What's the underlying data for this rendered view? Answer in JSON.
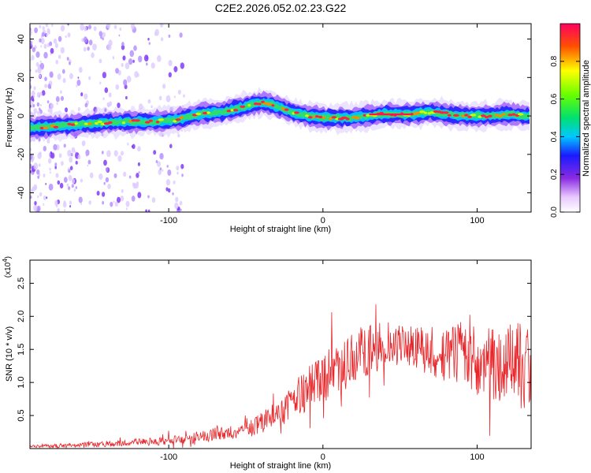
{
  "title": "C2E2.2026.052.02.23.G22",
  "chart_data": [
    {
      "type": "heatmap",
      "title": "C2E2.2026.052.02.23.G22",
      "xlabel": "Height of straight line (km)",
      "ylabel": "Frequency (Hz)",
      "xlim": [
        -190,
        135
      ],
      "ylim": [
        -50,
        48
      ],
      "xticks": [
        -100,
        0,
        100
      ],
      "xtick_labels": [
        "-100",
        "0",
        "100"
      ],
      "yticks": [
        -40,
        -20,
        0,
        20,
        40
      ],
      "ytick_labels": [
        "-40",
        "-20",
        "0",
        "20",
        "40"
      ],
      "ridge": {
        "x": [
          -185,
          -170,
          -150,
          -130,
          -110,
          -95,
          -80,
          -65,
          -55,
          -45,
          -38,
          -30,
          -20,
          -10,
          0,
          10,
          20,
          30,
          40,
          50,
          60,
          70,
          80,
          90,
          100,
          110,
          120,
          130
        ],
        "frequency": [
          -6,
          -5,
          -4,
          -3,
          -3,
          -2,
          1,
          2,
          4,
          6,
          7,
          5,
          2,
          0,
          -1,
          -1,
          -1,
          0,
          1,
          1,
          1,
          2,
          1,
          0,
          0,
          0,
          1,
          0
        ]
      },
      "colorbar": {
        "label": "Normalized spectral amplitude",
        "range": [
          0,
          1
        ],
        "ticks": [
          0,
          0.2,
          0.4,
          0.6,
          0.8
        ],
        "tick_labels": [
          "0.0",
          "0.2",
          "0.4",
          "0.6",
          "0.8"
        ]
      }
    },
    {
      "type": "line",
      "xlabel": "Height of straight line (km)",
      "ylabel": "SNR (10 * v/v)",
      "scale_label": "(x10",
      "scale_exp": "4",
      "scale_close": ")",
      "xlim": [
        -190,
        135
      ],
      "ylim": [
        0,
        2.85
      ],
      "xticks": [
        -100,
        0,
        100
      ],
      "xtick_labels": [
        "-100",
        "0",
        "100"
      ],
      "yticks": [
        0.5,
        1.0,
        1.5,
        2.0,
        2.5
      ],
      "ytick_labels": [
        "0.5",
        "1.0",
        "1.5",
        "2.0",
        "2.5"
      ],
      "series": [
        {
          "name": "SNR",
          "color": "#e8262a",
          "x": [
            -190,
            -160,
            -130,
            -100,
            -85,
            -70,
            -55,
            -45,
            -35,
            -25,
            -15,
            -5,
            5,
            15,
            25,
            35,
            45,
            55,
            65,
            75,
            85,
            95,
            105,
            115,
            125,
            135
          ],
          "mean": [
            0.03,
            0.05,
            0.08,
            0.12,
            0.15,
            0.22,
            0.25,
            0.3,
            0.45,
            0.6,
            0.8,
            1.0,
            1.15,
            1.3,
            1.45,
            1.55,
            1.6,
            1.55,
            1.5,
            1.45,
            1.4,
            1.35,
            1.3,
            1.3,
            1.25,
            1.2
          ],
          "spread": [
            0.02,
            0.04,
            0.05,
            0.06,
            0.08,
            0.1,
            0.1,
            0.15,
            0.2,
            0.25,
            0.3,
            0.35,
            0.4,
            0.4,
            0.4,
            0.35,
            0.3,
            0.3,
            0.35,
            0.4,
            0.45,
            0.5,
            0.55,
            0.6,
            0.65,
            0.7
          ]
        }
      ]
    }
  ]
}
